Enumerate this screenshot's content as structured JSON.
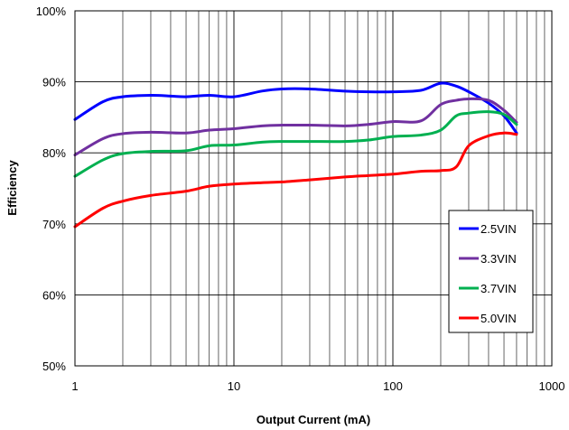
{
  "chart_data": {
    "type": "line",
    "title": "",
    "xlabel": "Output Current (mA)",
    "ylabel": "Efficiency",
    "x_scale": "log",
    "xlim": [
      1,
      1000
    ],
    "ylim": [
      50,
      100
    ],
    "x_ticks": [
      1,
      10,
      100,
      1000
    ],
    "x_tick_labels": [
      "1",
      "10",
      "100",
      "1000"
    ],
    "y_ticks": [
      50,
      60,
      70,
      80,
      90,
      100
    ],
    "y_tick_labels": [
      "50%",
      "60%",
      "70%",
      "80%",
      "90%",
      "100%"
    ],
    "grid": true,
    "legend_position": "bottom-right",
    "series": [
      {
        "name": "2.5VIN",
        "color": "#0000ff",
        "points": [
          [
            1,
            84.7
          ],
          [
            1.5,
            87.2
          ],
          [
            2,
            87.9
          ],
          [
            3,
            88.1
          ],
          [
            4,
            88.0
          ],
          [
            5,
            87.9
          ],
          [
            7,
            88.1
          ],
          [
            10,
            87.9
          ],
          [
            15,
            88.7
          ],
          [
            20,
            89.0
          ],
          [
            30,
            89.0
          ],
          [
            50,
            88.7
          ],
          [
            70,
            88.6
          ],
          [
            100,
            88.6
          ],
          [
            150,
            88.8
          ],
          [
            200,
            89.8
          ],
          [
            250,
            89.4
          ],
          [
            300,
            88.6
          ],
          [
            400,
            87.0
          ],
          [
            500,
            85.2
          ],
          [
            600,
            82.8
          ]
        ]
      },
      {
        "name": "3.3VIN",
        "color": "#7030a0",
        "points": [
          [
            1,
            79.7
          ],
          [
            1.5,
            82.0
          ],
          [
            2,
            82.7
          ],
          [
            3,
            82.9
          ],
          [
            5,
            82.8
          ],
          [
            7,
            83.2
          ],
          [
            10,
            83.4
          ],
          [
            15,
            83.8
          ],
          [
            20,
            83.9
          ],
          [
            30,
            83.9
          ],
          [
            50,
            83.8
          ],
          [
            70,
            84.0
          ],
          [
            100,
            84.4
          ],
          [
            150,
            84.5
          ],
          [
            200,
            86.8
          ],
          [
            250,
            87.4
          ],
          [
            300,
            87.6
          ],
          [
            400,
            87.4
          ],
          [
            500,
            86.0
          ],
          [
            600,
            84.3
          ]
        ]
      },
      {
        "name": "3.7VIN",
        "color": "#00b050",
        "points": [
          [
            1,
            76.7
          ],
          [
            1.5,
            79.0
          ],
          [
            2,
            79.9
          ],
          [
            3,
            80.2
          ],
          [
            5,
            80.3
          ],
          [
            7,
            81.0
          ],
          [
            10,
            81.1
          ],
          [
            15,
            81.5
          ],
          [
            20,
            81.6
          ],
          [
            30,
            81.6
          ],
          [
            50,
            81.6
          ],
          [
            70,
            81.8
          ],
          [
            100,
            82.3
          ],
          [
            150,
            82.5
          ],
          [
            200,
            83.2
          ],
          [
            250,
            85.2
          ],
          [
            300,
            85.6
          ],
          [
            400,
            85.8
          ],
          [
            500,
            85.4
          ],
          [
            600,
            84.0
          ]
        ]
      },
      {
        "name": "5.0VIN",
        "color": "#ff0000",
        "points": [
          [
            1,
            69.6
          ],
          [
            1.5,
            72.2
          ],
          [
            2,
            73.2
          ],
          [
            3,
            74.0
          ],
          [
            5,
            74.6
          ],
          [
            7,
            75.3
          ],
          [
            10,
            75.6
          ],
          [
            15,
            75.8
          ],
          [
            20,
            75.9
          ],
          [
            30,
            76.2
          ],
          [
            50,
            76.6
          ],
          [
            70,
            76.8
          ],
          [
            100,
            77.0
          ],
          [
            150,
            77.4
          ],
          [
            200,
            77.5
          ],
          [
            250,
            78.0
          ],
          [
            300,
            81.0
          ],
          [
            400,
            82.4
          ],
          [
            500,
            82.8
          ],
          [
            600,
            82.6
          ]
        ]
      }
    ]
  }
}
